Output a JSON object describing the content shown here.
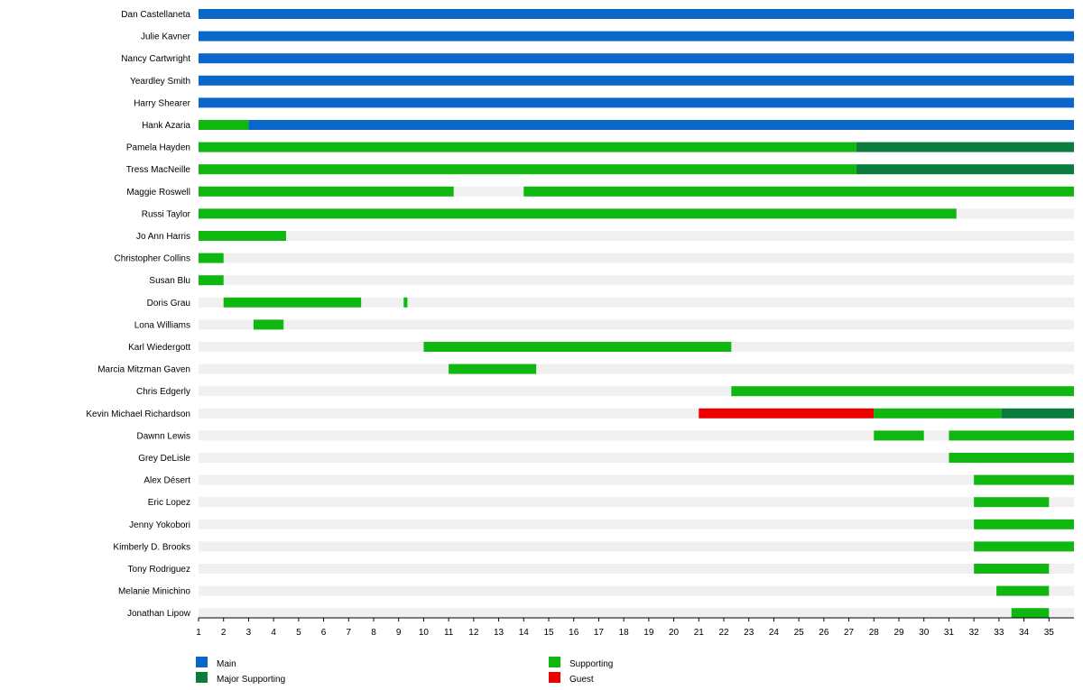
{
  "chart_data": {
    "type": "timeline",
    "x_ticks": [
      1,
      2,
      3,
      4,
      5,
      6,
      7,
      8,
      9,
      10,
      11,
      12,
      13,
      14,
      15,
      16,
      17,
      18,
      19,
      20,
      21,
      22,
      23,
      24,
      25,
      26,
      27,
      28,
      29,
      30,
      31,
      32,
      33,
      34,
      35
    ],
    "xlim": [
      1,
      36
    ],
    "colors": {
      "Main": "#0b66c9",
      "Major Supporting": "#0a7d3e",
      "Supporting": "#11b711",
      "Guest": "#ef0000",
      "track": "#f0f0f0",
      "axis": "#000000"
    },
    "legend": [
      {
        "key": "Main",
        "label": "Main"
      },
      {
        "key": "Major Supporting",
        "label": "Major Supporting"
      },
      {
        "key": "Supporting",
        "label": "Supporting"
      },
      {
        "key": "Guest",
        "label": "Guest"
      }
    ],
    "rows": [
      {
        "name": "Dan Castellaneta",
        "segments": [
          {
            "start": 1,
            "end": 36,
            "role": "Main"
          }
        ]
      },
      {
        "name": "Julie Kavner",
        "segments": [
          {
            "start": 1,
            "end": 36,
            "role": "Main"
          }
        ]
      },
      {
        "name": "Nancy Cartwright",
        "segments": [
          {
            "start": 1,
            "end": 36,
            "role": "Main"
          }
        ]
      },
      {
        "name": "Yeardley Smith",
        "segments": [
          {
            "start": 1,
            "end": 36,
            "role": "Main"
          }
        ]
      },
      {
        "name": "Harry Shearer",
        "segments": [
          {
            "start": 1,
            "end": 36,
            "role": "Main"
          }
        ]
      },
      {
        "name": "Hank Azaria",
        "segments": [
          {
            "start": 1,
            "end": 3,
            "role": "Supporting"
          },
          {
            "start": 3,
            "end": 36,
            "role": "Main"
          }
        ]
      },
      {
        "name": "Pamela Hayden",
        "segments": [
          {
            "start": 1,
            "end": 27.3,
            "role": "Supporting"
          },
          {
            "start": 27.3,
            "end": 36,
            "role": "Major Supporting"
          }
        ]
      },
      {
        "name": "Tress MacNeille",
        "segments": [
          {
            "start": 1,
            "end": 27.3,
            "role": "Supporting"
          },
          {
            "start": 27.3,
            "end": 36,
            "role": "Major Supporting"
          }
        ]
      },
      {
        "name": "Maggie Roswell",
        "segments": [
          {
            "start": 1,
            "end": 11.2,
            "role": "Supporting"
          },
          {
            "start": 14,
            "end": 36,
            "role": "Supporting"
          }
        ]
      },
      {
        "name": "Russi Taylor",
        "segments": [
          {
            "start": 1,
            "end": 31.3,
            "role": "Supporting"
          }
        ]
      },
      {
        "name": "Jo Ann Harris",
        "segments": [
          {
            "start": 1,
            "end": 4.5,
            "role": "Supporting"
          }
        ]
      },
      {
        "name": "Christopher Collins",
        "segments": [
          {
            "start": 1,
            "end": 2,
            "role": "Supporting"
          }
        ]
      },
      {
        "name": "Susan Blu",
        "segments": [
          {
            "start": 1,
            "end": 2,
            "role": "Supporting"
          }
        ]
      },
      {
        "name": "Doris Grau",
        "segments": [
          {
            "start": 2,
            "end": 7.5,
            "role": "Supporting"
          },
          {
            "start": 9.2,
            "end": 9.35,
            "role": "Supporting"
          }
        ]
      },
      {
        "name": "Lona Williams",
        "segments": [
          {
            "start": 3.2,
            "end": 4.4,
            "role": "Supporting"
          }
        ]
      },
      {
        "name": "Karl Wiedergott",
        "segments": [
          {
            "start": 10,
            "end": 22.3,
            "role": "Supporting"
          }
        ]
      },
      {
        "name": "Marcia Mitzman Gaven",
        "segments": [
          {
            "start": 11,
            "end": 14.5,
            "role": "Supporting"
          }
        ]
      },
      {
        "name": "Chris Edgerly",
        "segments": [
          {
            "start": 22.3,
            "end": 36,
            "role": "Supporting"
          }
        ]
      },
      {
        "name": "Kevin Michael Richardson",
        "segments": [
          {
            "start": 21,
            "end": 28,
            "role": "Guest"
          },
          {
            "start": 28,
            "end": 33.1,
            "role": "Supporting"
          },
          {
            "start": 33.1,
            "end": 36,
            "role": "Major Supporting"
          }
        ]
      },
      {
        "name": "Dawnn Lewis",
        "segments": [
          {
            "start": 28,
            "end": 30,
            "role": "Supporting"
          },
          {
            "start": 31,
            "end": 36,
            "role": "Supporting"
          }
        ]
      },
      {
        "name": "Grey DeLisle",
        "segments": [
          {
            "start": 31,
            "end": 36,
            "role": "Supporting"
          }
        ]
      },
      {
        "name": "Alex Désert",
        "segments": [
          {
            "start": 32,
            "end": 36,
            "role": "Supporting"
          }
        ]
      },
      {
        "name": "Eric Lopez",
        "segments": [
          {
            "start": 32,
            "end": 35,
            "role": "Supporting"
          }
        ]
      },
      {
        "name": "Jenny Yokobori",
        "segments": [
          {
            "start": 32,
            "end": 36,
            "role": "Supporting"
          }
        ]
      },
      {
        "name": "Kimberly D. Brooks",
        "segments": [
          {
            "start": 32,
            "end": 36,
            "role": "Supporting"
          }
        ]
      },
      {
        "name": "Tony Rodriguez",
        "segments": [
          {
            "start": 32,
            "end": 35,
            "role": "Supporting"
          }
        ]
      },
      {
        "name": "Melanie Minichino",
        "segments": [
          {
            "start": 32.9,
            "end": 35,
            "role": "Supporting"
          }
        ]
      },
      {
        "name": "Jonathan Lipow",
        "segments": [
          {
            "start": 33.5,
            "end": 35,
            "role": "Supporting"
          }
        ]
      }
    ]
  }
}
